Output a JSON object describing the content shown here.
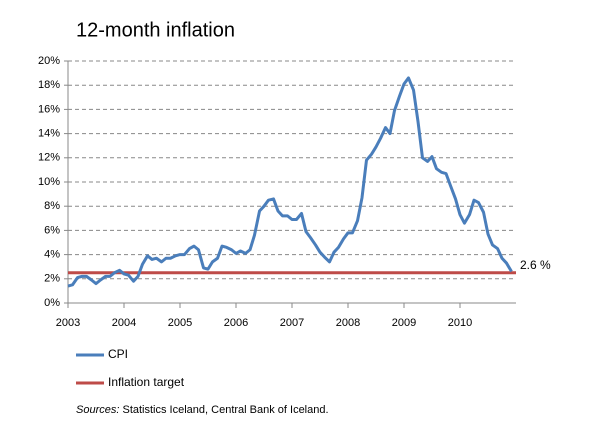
{
  "chart_data": {
    "type": "line",
    "title": "12-month inflation",
    "series": [
      {
        "name": "CPI",
        "color": "#4a7ebb",
        "x": [
          2003,
          2003.08,
          2003.17,
          2003.25,
          2003.33,
          2003.42,
          2003.5,
          2003.58,
          2003.67,
          2003.75,
          2003.83,
          2003.92,
          2004,
          2004.08,
          2004.17,
          2004.25,
          2004.33,
          2004.42,
          2004.5,
          2004.58,
          2004.67,
          2004.75,
          2004.83,
          2004.92,
          2005,
          2005.08,
          2005.17,
          2005.25,
          2005.33,
          2005.42,
          2005.5,
          2005.58,
          2005.67,
          2005.75,
          2005.83,
          2005.92,
          2006,
          2006.08,
          2006.17,
          2006.25,
          2006.33,
          2006.42,
          2006.5,
          2006.58,
          2006.67,
          2006.75,
          2006.83,
          2006.92,
          2007,
          2007.08,
          2007.17,
          2007.25,
          2007.33,
          2007.42,
          2007.5,
          2007.58,
          2007.67,
          2007.75,
          2007.83,
          2007.92,
          2008,
          2008.08,
          2008.17,
          2008.25,
          2008.33,
          2008.42,
          2008.5,
          2008.58,
          2008.67,
          2008.75,
          2008.83,
          2008.92,
          2009,
          2009.08,
          2009.17,
          2009.25,
          2009.33,
          2009.42,
          2009.5,
          2009.58,
          2009.67,
          2009.75,
          2009.83,
          2009.92,
          2010,
          2010.08,
          2010.17,
          2010.25,
          2010.33,
          2010.42,
          2010.5,
          2010.58,
          2010.67,
          2010.75,
          2010.83,
          2010.92
        ],
        "values": [
          1.4,
          1.5,
          2.1,
          2.2,
          2.2,
          1.9,
          1.6,
          1.9,
          2.2,
          2.2,
          2.5,
          2.7,
          2.4,
          2.3,
          1.8,
          2.2,
          3.2,
          3.9,
          3.6,
          3.7,
          3.4,
          3.7,
          3.7,
          3.9,
          4.0,
          4.0,
          4.5,
          4.7,
          4.4,
          2.9,
          2.8,
          3.4,
          3.7,
          4.7,
          4.6,
          4.4,
          4.1,
          4.3,
          4.1,
          4.4,
          5.6,
          7.6,
          8.0,
          8.5,
          8.6,
          7.6,
          7.2,
          7.2,
          6.9,
          6.9,
          7.4,
          5.9,
          5.4,
          4.8,
          4.2,
          3.8,
          3.4,
          4.2,
          4.6,
          5.3,
          5.8,
          5.8,
          6.8,
          8.7,
          11.8,
          12.3,
          12.9,
          13.6,
          14.5,
          14.0,
          15.9,
          17.1,
          18.1,
          18.6,
          17.6,
          15.0,
          12.0,
          11.7,
          12.1,
          11.1,
          10.8,
          10.7,
          9.7,
          8.6,
          7.3,
          6.6,
          7.3,
          8.5,
          8.3,
          7.5,
          5.7,
          4.8,
          4.5,
          3.7,
          3.3,
          2.6
        ]
      },
      {
        "name": "Inflation target",
        "color": "#be4b48",
        "x": [
          2003,
          2011
        ],
        "values": [
          2.5,
          2.5
        ]
      }
    ],
    "annotation": "2.6 %",
    "xlim": [
      2003,
      2011
    ],
    "xticks": [
      2003,
      2004,
      2005,
      2006,
      2007,
      2008,
      2009,
      2010
    ],
    "ylim": [
      0,
      20
    ],
    "yticks": [
      {
        "value": 0,
        "label": "0%"
      },
      {
        "value": 2,
        "label": "2%"
      },
      {
        "value": 4,
        "label": "4%"
      },
      {
        "value": 6,
        "label": "6%"
      },
      {
        "value": 8,
        "label": "8%"
      },
      {
        "value": 10,
        "label": "10%"
      },
      {
        "value": 12,
        "label": "12%"
      },
      {
        "value": 14,
        "label": "14%"
      },
      {
        "value": 16,
        "label": "16%"
      },
      {
        "value": 18,
        "label": "18%"
      },
      {
        "value": 20,
        "label": "20%"
      }
    ],
    "grid": true,
    "sources_label": "Sources:",
    "sources_text": "Statistics  Iceland, Central Bank of Iceland."
  }
}
